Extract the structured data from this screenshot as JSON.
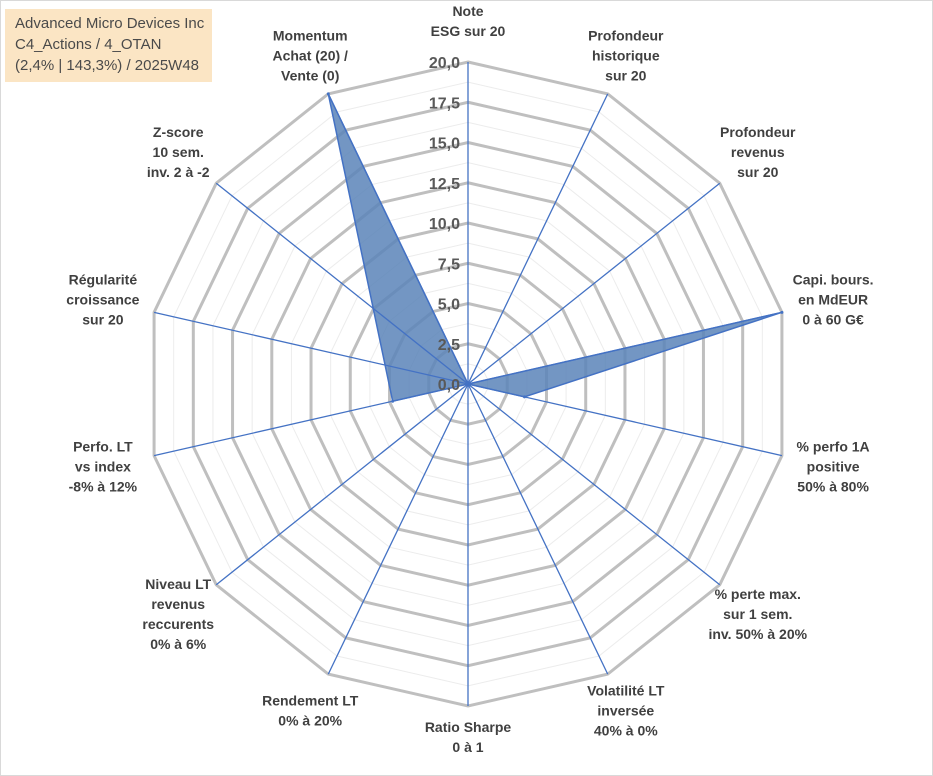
{
  "title_box": {
    "line1": "Advanced Micro Devices Inc",
    "line2": "C4_Actions / 4_OTAN",
    "line3": "(2,4% | 143,3%) / 2025W48"
  },
  "chart_data": {
    "type": "radar",
    "rlim": [
      0,
      20
    ],
    "grid": true,
    "tick_labels": [
      "0,0",
      "2,5",
      "5,0",
      "7,5",
      "10,0",
      "12,5",
      "15,0",
      "17,5",
      "20,0"
    ],
    "ticks": [
      0,
      2.5,
      5,
      7.5,
      10,
      12.5,
      15,
      17.5,
      20
    ],
    "categories": [
      [
        "Note",
        "ESG sur 20"
      ],
      [
        "Profondeur",
        "historique",
        "sur 20"
      ],
      [
        "Profondeur",
        "revenus",
        "sur 20"
      ],
      [
        "Capi. bours.",
        "en MdEUR",
        "0 à 60 G€"
      ],
      [
        "% perfo 1A",
        "positive",
        "50% à 80%"
      ],
      [
        "% perte max.",
        "sur 1 sem.",
        "inv. 50% à 20%"
      ],
      [
        "Volatilité LT",
        "inversée",
        "40% à 0%"
      ],
      [
        "Ratio Sharpe",
        "0 à 1"
      ],
      [
        "Rendement LT",
        "0% à 20%"
      ],
      [
        "Niveau LT",
        "revenus",
        "reccurents",
        "0% à 6%"
      ],
      [
        "Perfo. LT",
        "vs index",
        "-8% à 12%"
      ],
      [
        "Régularité",
        "croissance",
        "sur 20"
      ],
      [
        "Z-score",
        "10 sem.",
        "inv. 2 à -2"
      ],
      [
        "Momentum",
        "Achat (20) /",
        "Vente (0)"
      ]
    ],
    "series": [
      {
        "values": [
          0,
          0,
          0,
          20,
          3.6,
          0,
          0,
          0,
          0,
          0,
          4.8,
          null,
          null,
          20
        ],
        "color": "#4f7aae"
      }
    ],
    "colors": {
      "fill": "#5b84b8",
      "line": "#4472c4",
      "grid": "#bfbfbf",
      "axis": "#4472c4"
    }
  }
}
